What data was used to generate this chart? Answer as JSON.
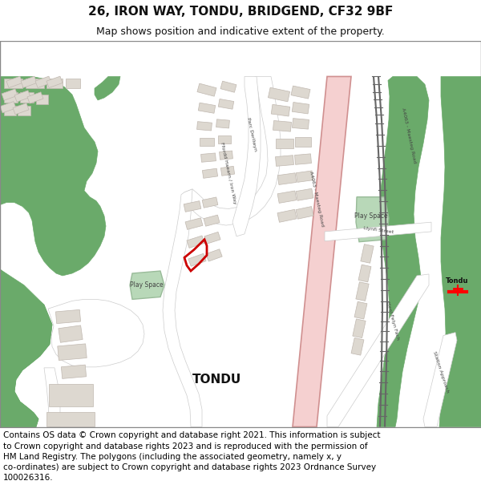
{
  "title_line1": "26, IRON WAY, TONDU, BRIDGEND, CF32 9BF",
  "title_line2": "Map shows position and indicative extent of the property.",
  "footer_text": "Contains OS data © Crown copyright and database right 2021. This information is subject\nto Crown copyright and database rights 2023 and is reproduced with the permission of\nHM Land Registry. The polygons (including the associated geometry, namely x, y\nco-ordinates) are subject to Crown copyright and database rights 2023 Ordnance Survey\n100026316.",
  "green_color": "#6aaa6a",
  "light_green": "#b8d8b8",
  "building_color": "#ddd8d0",
  "road_white": "#ffffff",
  "road_stroke": "#cccccc",
  "major_road_fill": "#f5d0d0",
  "major_road_stroke": "#d09090",
  "railway_color": "#888888",
  "red_outline": "#cc0000",
  "title_fontsize": 11,
  "subtitle_fontsize": 9,
  "footer_fontsize": 7.5
}
